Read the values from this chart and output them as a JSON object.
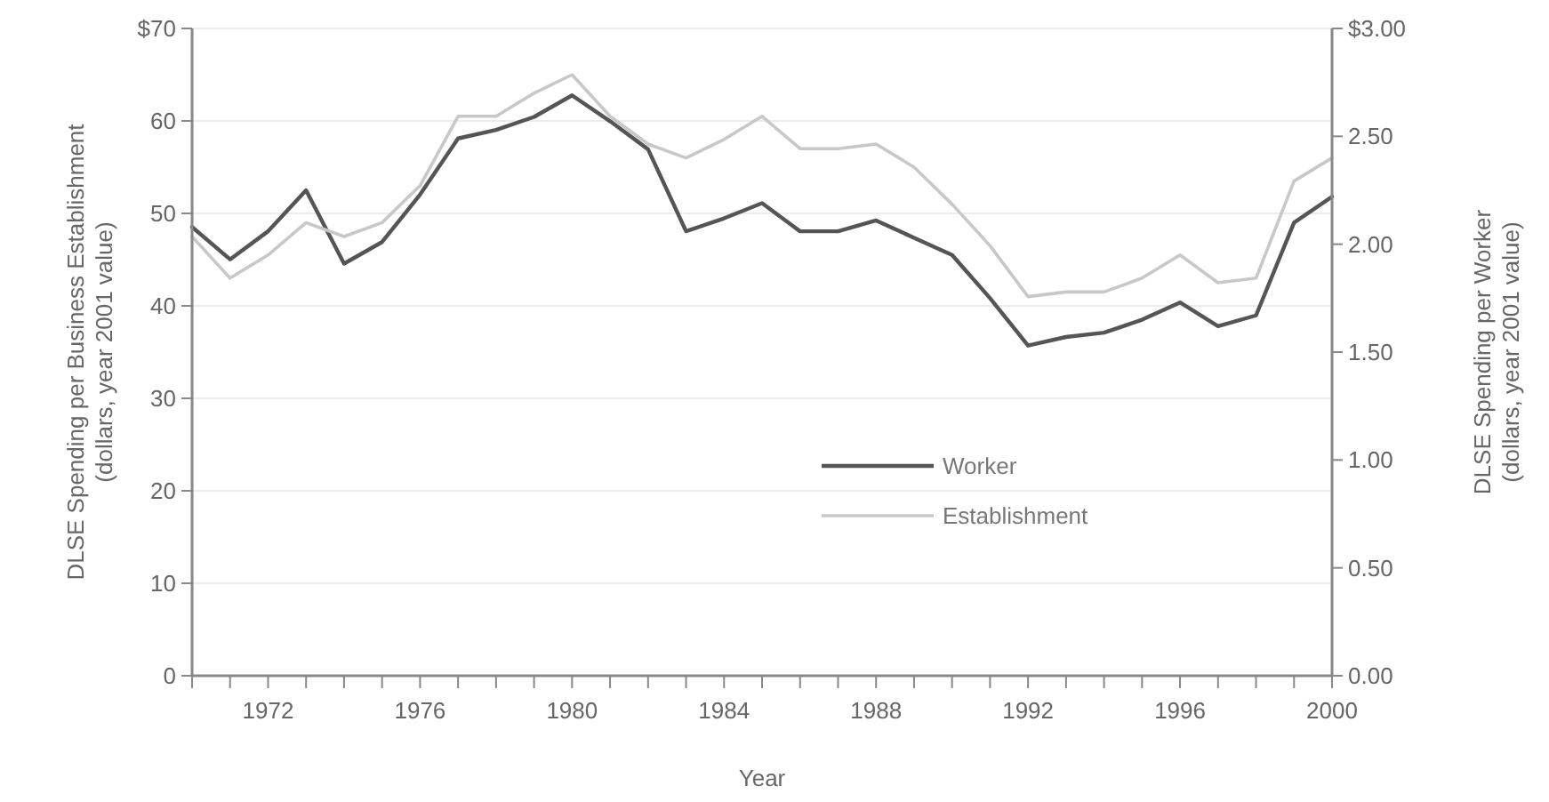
{
  "chart_data": {
    "type": "line",
    "xlabel": "Year",
    "ylabel": "DLSE Spending per Business Establishment\n(dollars, year 2001 value)",
    "y2label": "DLSE Spending per Worker\n(dollars, year 2001 value)",
    "x": [
      1970,
      1971,
      1972,
      1973,
      1974,
      1975,
      1976,
      1977,
      1978,
      1979,
      1980,
      1981,
      1982,
      1983,
      1984,
      1985,
      1986,
      1987,
      1988,
      1989,
      1990,
      1991,
      1992,
      1993,
      1994,
      1995,
      1996,
      1997,
      1998,
      1999,
      2000
    ],
    "series": [
      {
        "name": "Worker",
        "color": "#555555",
        "axis": "y2",
        "values": [
          2.08,
          1.93,
          2.06,
          2.25,
          1.91,
          2.01,
          2.23,
          2.49,
          2.53,
          2.59,
          2.69,
          2.57,
          2.44,
          2.06,
          2.12,
          2.19,
          2.06,
          2.06,
          2.11,
          2.03,
          1.95,
          1.75,
          1.53,
          1.57,
          1.59,
          1.65,
          1.73,
          1.62,
          1.67,
          2.1,
          2.22
        ]
      },
      {
        "name": "Establishment",
        "color": "#c8c8c8",
        "values": [
          47.5,
          43,
          45.5,
          49,
          47.5,
          49,
          53,
          60.5,
          60.5,
          63,
          65,
          60.5,
          57.5,
          56,
          58,
          60.5,
          57,
          57,
          57.5,
          55,
          51,
          46.5,
          41,
          41.5,
          41.5,
          43,
          45.5,
          42.5,
          43,
          53.5,
          56
        ]
      }
    ],
    "xlim": [
      1970,
      2000
    ],
    "xticks": [
      {
        "value": 1970,
        "label": null
      },
      {
        "value": 1971,
        "label": null
      },
      1972,
      {
        "value": 1973,
        "label": null
      },
      {
        "value": 1974,
        "label": null
      },
      {
        "value": 1975,
        "label": null
      },
      1976,
      {
        "value": 1977,
        "label": null
      },
      {
        "value": 1978,
        "label": null
      },
      {
        "value": 1979,
        "label": null
      },
      1980,
      {
        "value": 1981,
        "label": null
      },
      {
        "value": 1982,
        "label": null
      },
      {
        "value": 1983,
        "label": null
      },
      1984,
      {
        "value": 1985,
        "label": null
      },
      {
        "value": 1986,
        "label": null
      },
      {
        "value": 1987,
        "label": null
      },
      1988,
      {
        "value": 1989,
        "label": null
      },
      {
        "value": 1990,
        "label": null
      },
      {
        "value": 1991,
        "label": null
      },
      1992,
      {
        "value": 1993,
        "label": null
      },
      {
        "value": 1994,
        "label": null
      },
      {
        "value": 1995,
        "label": null
      },
      1996,
      {
        "value": 1997,
        "label": null
      },
      {
        "value": 1998,
        "label": null
      },
      {
        "value": 1999,
        "label": null
      },
      2000
    ],
    "ylim": [
      0,
      70
    ],
    "yticks": [
      0,
      10,
      20,
      30,
      40,
      50,
      60,
      {
        "value": 70,
        "label": "$70"
      }
    ],
    "y2lim": [
      0,
      3
    ],
    "y2ticks": [
      {
        "value": 0,
        "label": "0.00"
      },
      {
        "value": 0.5,
        "label": "0.50"
      },
      {
        "value": 1,
        "label": "1.00"
      },
      {
        "value": 1.5,
        "label": "1.50"
      },
      {
        "value": 2,
        "label": "2.00"
      },
      {
        "value": 2.5,
        "label": "2.50"
      },
      {
        "value": 3,
        "label": "$3.00"
      }
    ],
    "grid": "y",
    "legend": "bottom",
    "line_style": "solid",
    "marker": "none"
  }
}
